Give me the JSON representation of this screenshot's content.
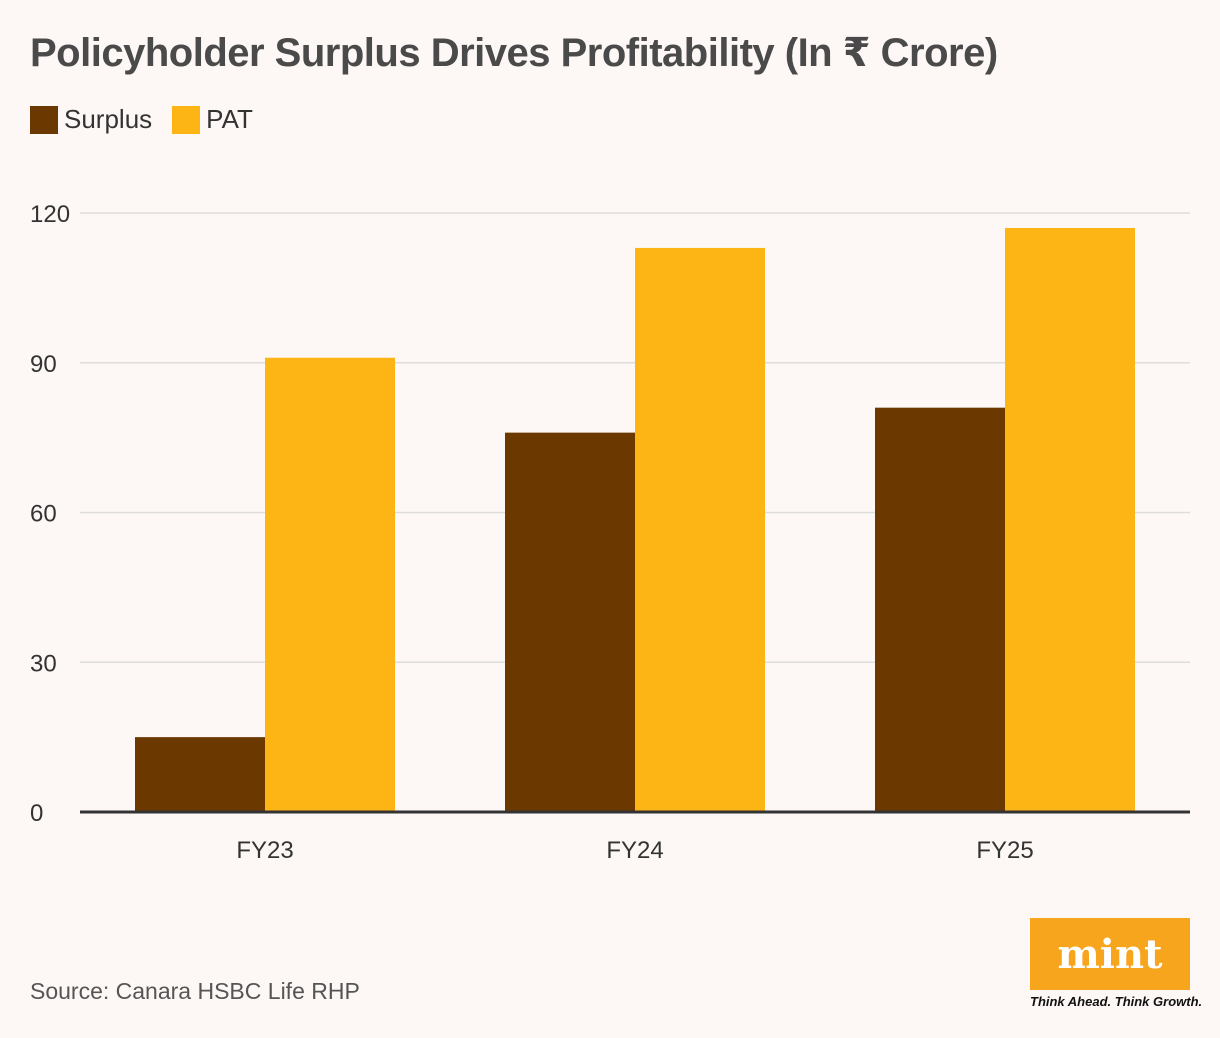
{
  "title": "Policyholder Surplus Drives Profitability (In ₹ Crore)",
  "source": "Source: Canara HSBC Life RHP",
  "logo": {
    "word": "mint",
    "tagline": "Think Ahead. Think Growth.",
    "color": "#f7a51c"
  },
  "colors": {
    "surplus": "#6b3800",
    "pat": "#fdb515",
    "grid": "#dddddd",
    "axis": "#333333"
  },
  "chart_data": {
    "type": "bar",
    "title": "Policyholder Surplus Drives Profitability (In ₹ Crore)",
    "xlabel": "",
    "ylabel": "",
    "categories": [
      "FY23",
      "FY24",
      "FY25"
    ],
    "series": [
      {
        "name": "Surplus",
        "values": [
          15,
          76,
          81
        ]
      },
      {
        "name": "PAT",
        "values": [
          91,
          113,
          117
        ]
      }
    ],
    "ylim": [
      0,
      120
    ],
    "yticks": [
      0,
      30,
      60,
      90,
      120
    ],
    "grid": true,
    "legend": "top-left"
  }
}
